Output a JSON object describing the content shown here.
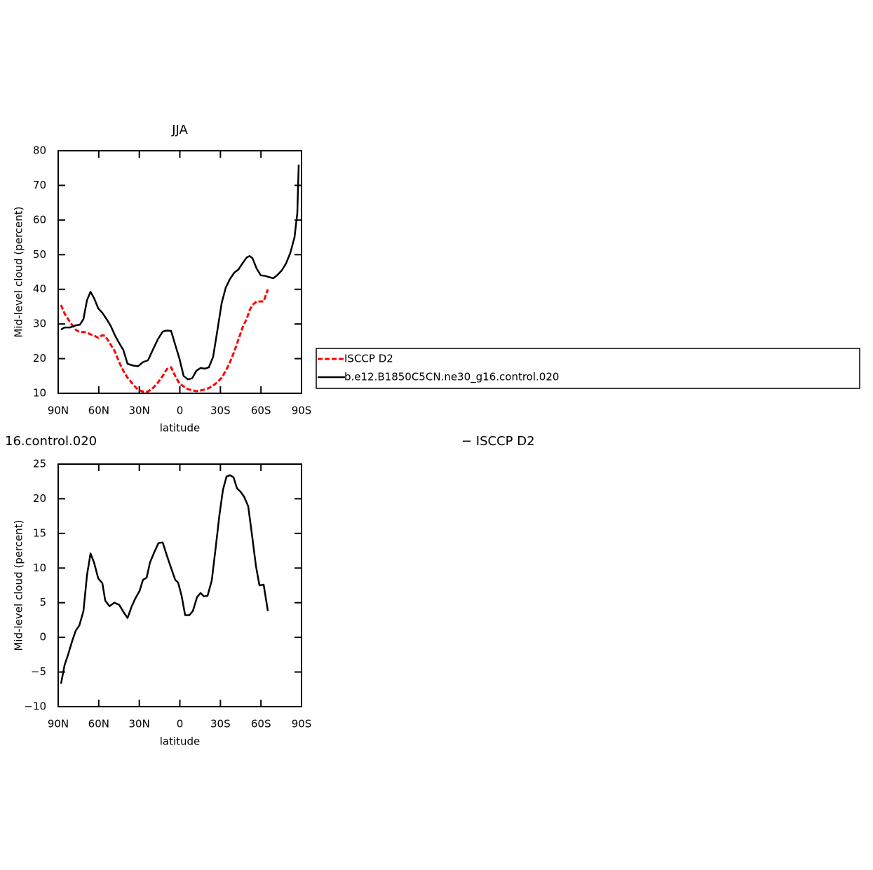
{
  "chart_data": [
    {
      "type": "line",
      "title": "JJA",
      "xlabel": "latitude",
      "ylabel": "Mid-level cloud (percent)",
      "xlim": [
        90,
        -90
      ],
      "xticks": [
        {
          "value": 90,
          "label": "90N"
        },
        {
          "value": 60,
          "label": "60N"
        },
        {
          "value": 30,
          "label": "30N"
        },
        0,
        {
          "value": -30,
          "label": "30S"
        },
        {
          "value": -60,
          "label": "60S"
        },
        {
          "value": -90,
          "label": "90S"
        }
      ],
      "ylim": [
        10,
        80
      ],
      "yticks": [
        10,
        20,
        30,
        40,
        50,
        60,
        70,
        80
      ],
      "legend": true,
      "series": [
        {
          "name": "ISCCP D2",
          "color": "#ff0000",
          "dash": true,
          "x": [
            87.9,
            85.3,
            81.2,
            77.0,
            73.9,
            71.3,
            68.7,
            66.1,
            63.5,
            60.4,
            57.3,
            55.2,
            51.1,
            48.0,
            44.9,
            41.8,
            38.7,
            34.5,
            30.9,
            27.3,
            23.6,
            20.0,
            16.4,
            12.7,
            9.6,
            6.5,
            3.4,
            0.3,
            -2.8,
            -5.9,
            -9.1,
            -12.2,
            -15.3,
            -18.4,
            -21.5,
            -24.6,
            -27.7,
            -30.9,
            -34.0,
            -37.1,
            -40.2,
            -43.3,
            -46.4,
            -49.5,
            -51.6,
            -53.7,
            -56.8,
            -62.0,
            -65.1
          ],
          "values": [
            35.5,
            33,
            30.5,
            28.3,
            27.6,
            27.7,
            27.5,
            27,
            26.7,
            26,
            26.8,
            26.5,
            24,
            22,
            19,
            16.5,
            14.5,
            12.5,
            11,
            10.5,
            10.5,
            11.5,
            13,
            15,
            17,
            17.5,
            15,
            12.8,
            12,
            11.2,
            10.9,
            10.6,
            10.8,
            11.1,
            11.5,
            12.2,
            13.2,
            14.5,
            16.5,
            19,
            22,
            25.5,
            29,
            31.5,
            34,
            35.5,
            36.5,
            36.5,
            40
          ]
        },
        {
          "name": "b.e12.B1850C5CN.ne30_g16.control.020",
          "color": "#000000",
          "dash": false,
          "x": [
            87.9,
            85.3,
            81.2,
            77.0,
            73.9,
            71.3,
            68.7,
            66.1,
            63.5,
            60.4,
            57.3,
            54.2,
            51.1,
            48.0,
            44.9,
            41.8,
            38.7,
            34.5,
            30.9,
            27.3,
            23.6,
            20.0,
            16.4,
            12.7,
            9.6,
            6.5,
            3.4,
            0.3,
            -2.8,
            -5.9,
            -9.1,
            -12.2,
            -15.3,
            -18.4,
            -21.5,
            -24.6,
            -27.7,
            -30.9,
            -34.0,
            -37.1,
            -40.2,
            -43.3,
            -46.4,
            -49.5,
            -51.6,
            -53.7,
            -56.8,
            -59.9,
            -63.0,
            -66.1,
            -69.2,
            -72.3,
            -75.5,
            -78.6,
            -81.7,
            -84.8,
            -86.9,
            -87.9
          ],
          "values": [
            28.4,
            29,
            29,
            29.6,
            29.8,
            31.4,
            36.9,
            39.3,
            37.5,
            34.5,
            33.2,
            31.4,
            29.4,
            26.7,
            24.5,
            22.5,
            18.5,
            18,
            17.8,
            19,
            19.5,
            22.5,
            25.5,
            27.8,
            28.1,
            28,
            24,
            20,
            15,
            14,
            14.3,
            16.5,
            17.3,
            17.1,
            17.5,
            20.5,
            28,
            36,
            40.5,
            43,
            44.8,
            45.7,
            47.5,
            49.2,
            49.6,
            49,
            46,
            44,
            43.9,
            43.5,
            43.2,
            44.2,
            45.5,
            47.5,
            50.5,
            55,
            62,
            76
          ]
        }
      ]
    },
    {
      "type": "line",
      "title_left": "16.control.020",
      "title_right": "− ISCCP D2",
      "xlabel": "latitude",
      "ylabel": "Mid-level cloud (percent)",
      "xlim": [
        90,
        -90
      ],
      "xticks": [
        {
          "value": 90,
          "label": "90N"
        },
        {
          "value": 60,
          "label": "60N"
        },
        {
          "value": 30,
          "label": "30N"
        },
        0,
        {
          "value": -30,
          "label": "30S"
        },
        {
          "value": -60,
          "label": "60S"
        },
        {
          "value": -90,
          "label": "90S"
        }
      ],
      "ylim": [
        -10,
        25
      ],
      "yticks": [
        {
          "value": -10,
          "label": "−10"
        },
        {
          "value": -5,
          "label": "−5"
        },
        0,
        5,
        10,
        15,
        20,
        25
      ],
      "legend": false,
      "series": [
        {
          "color": "#000000",
          "dash": false,
          "x": [
            87.9,
            85.3,
            82.7,
            79.6,
            77.0,
            74.4,
            71.3,
            68.7,
            66.1,
            63.5,
            60.4,
            57.3,
            55.2,
            52.1,
            48.5,
            44.9,
            41.2,
            38.7,
            35.6,
            33.0,
            29.8,
            27.3,
            24.6,
            22.1,
            18.9,
            15.8,
            12.7,
            9.6,
            6.5,
            3.4,
            1.3,
            -1.3,
            -3.9,
            -7.0,
            -9.6,
            -12.7,
            -15.3,
            -17.9,
            -20.5,
            -23.6,
            -26.7,
            -29.3,
            -31.9,
            -34.5,
            -37.1,
            -39.7,
            -42.3,
            -44.9,
            -47.5,
            -50.6,
            -53.2,
            -56.3,
            -58.9,
            -62.0,
            -65.1
          ],
          "values": [
            -6.7,
            -4,
            -2.5,
            -0.5,
            1,
            1.7,
            3.8,
            9,
            12.1,
            10.8,
            8.5,
            7.8,
            5.3,
            4.5,
            5,
            4.7,
            3.5,
            2.8,
            4.5,
            5.6,
            6.7,
            8.3,
            8.6,
            10.8,
            12.3,
            13.6,
            13.7,
            11.8,
            10,
            8.3,
            7.9,
            6,
            3.2,
            3.2,
            3.8,
            5.8,
            6.4,
            5.9,
            6.0,
            8.2,
            13.3,
            17.7,
            21.3,
            23.2,
            23.4,
            23.1,
            21.5,
            21.0,
            20.3,
            18.9,
            15,
            10.3,
            7.5,
            7.6,
            3.8
          ]
        }
      ]
    }
  ]
}
